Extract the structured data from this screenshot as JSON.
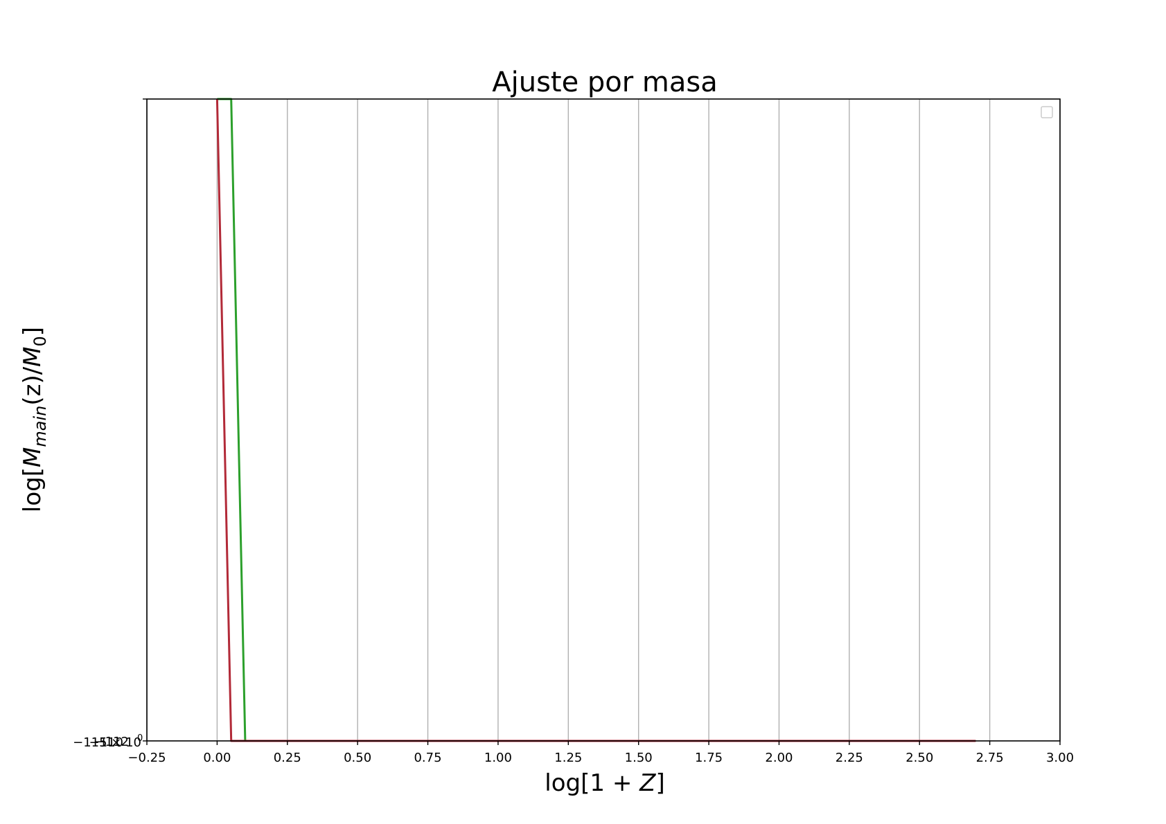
{
  "chart_data": {
    "type": "line",
    "title": "Ajuste por masa",
    "xlabel": "log[1 + Z]",
    "ylabel": "log[M_main(z)/M_0]",
    "ylabel_parts": {
      "prefix": "log[",
      "M": "M",
      "main": "main",
      "mid": "(z)/",
      "M0": "M",
      "zero": "0",
      "suffix": "]"
    },
    "xlabel_parts": {
      "prefix": "log[1 + ",
      "Z": "Z",
      "suffix": "]"
    },
    "xlim": [
      -0.25,
      3.0
    ],
    "ylim": [
      0,
      1
    ],
    "grid": "x-only",
    "legend": {
      "placement": "top-right",
      "entries": []
    },
    "x_ticks": [
      "−0.25",
      "0.00",
      "0.25",
      "0.50",
      "0.75",
      "1.00",
      "1.25",
      "1.50",
      "1.75",
      "2.00",
      "2.25",
      "2.50",
      "2.75",
      "3.00"
    ],
    "x_tick_values": [
      -0.25,
      0.0,
      0.25,
      0.5,
      0.75,
      1.0,
      1.25,
      1.5,
      1.75,
      2.0,
      2.25,
      2.5,
      2.75,
      3.0
    ],
    "y_tick_labels_overlapping": [
      "−1",
      "10",
      "12",
      "15 × 10",
      "0"
    ],
    "series": [
      {
        "color": "#2ca02c",
        "x": [
          0.0,
          0.05,
          0.1,
          2.7
        ],
        "y": [
          1.0,
          1.0,
          0.0,
          0.0
        ]
      },
      {
        "color": "#b22a38",
        "x": [
          0.0,
          0.05,
          2.7
        ],
        "y": [
          1.0,
          0.0,
          0.0
        ]
      }
    ]
  },
  "colors": {
    "grid": "#b0b0b0",
    "axes": "#000000"
  }
}
